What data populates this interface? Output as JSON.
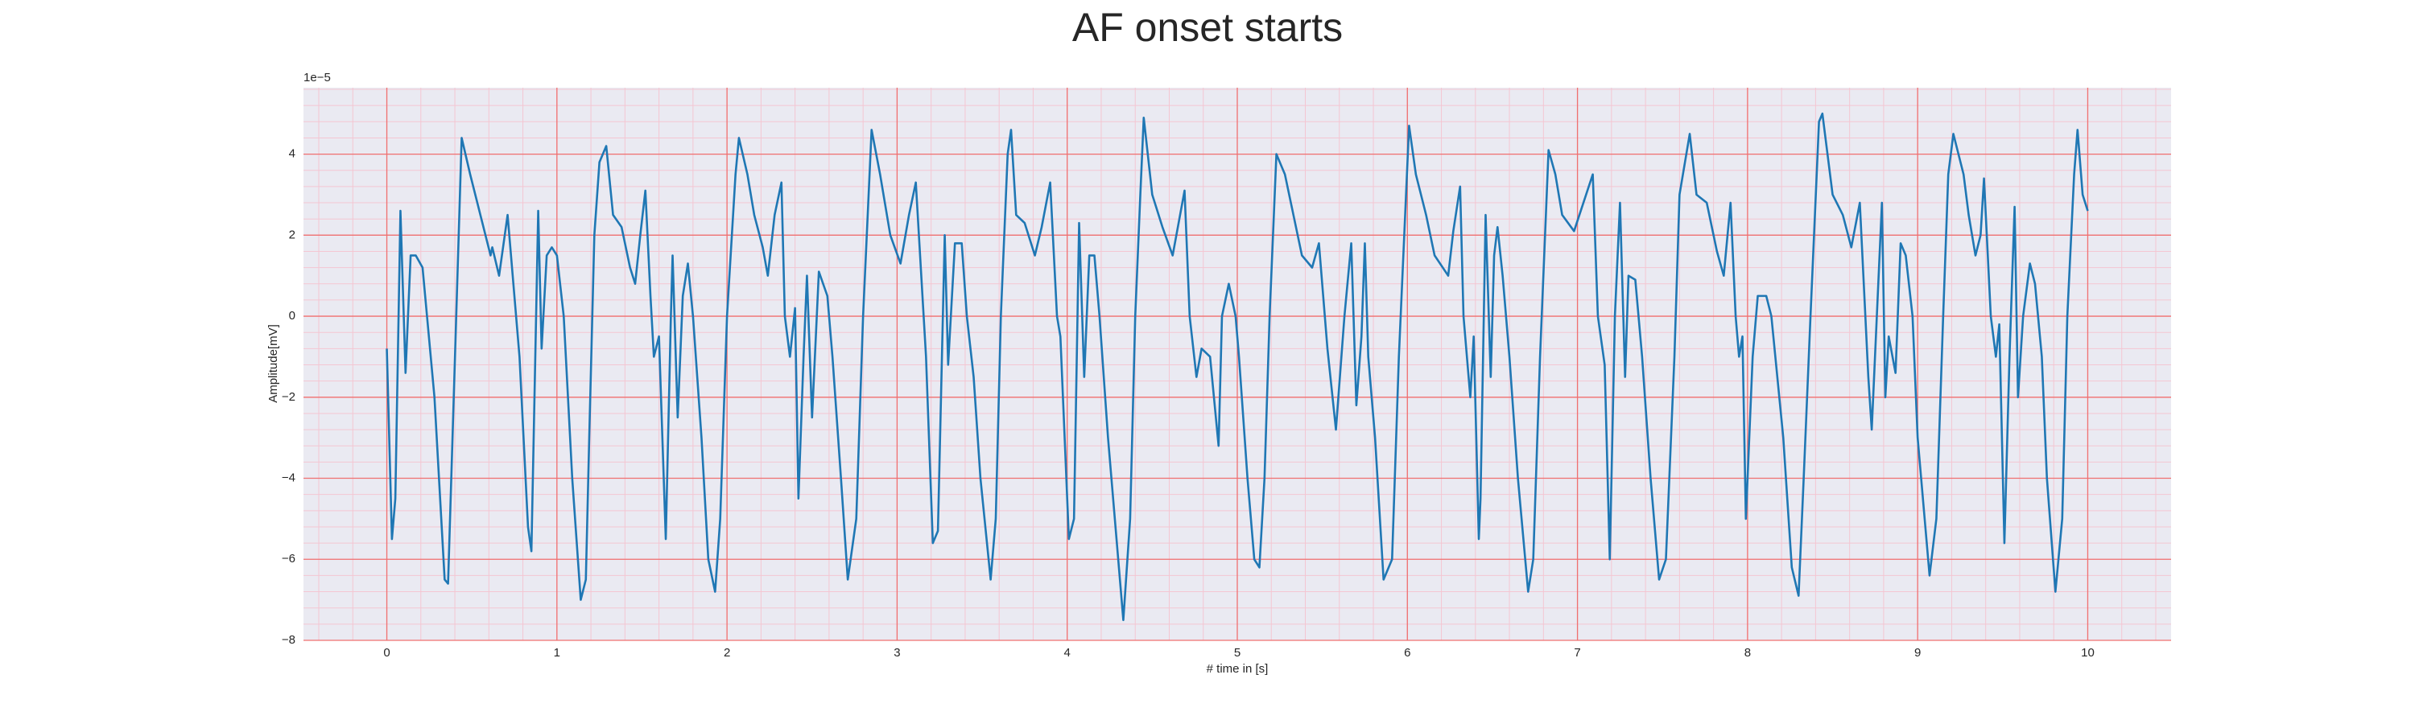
{
  "chart_data": {
    "type": "line",
    "title": "AF onset starts",
    "x_label": "# time in [s]",
    "y_label": "Amplitude[mV]",
    "y_offset_label": "1e−5",
    "color": "#1f77b4",
    "grid": true,
    "minor_grid": true,
    "xlim": [
      -0.49,
      10.49
    ],
    "ylim": [
      -8,
      5.64
    ],
    "xticks": [
      0,
      1,
      2,
      3,
      4,
      5,
      6,
      7,
      8,
      9,
      10
    ],
    "yticks": [
      {
        "value": -8,
        "label": "−8"
      },
      {
        "value": -6,
        "label": "−6"
      },
      {
        "value": -4,
        "label": "−4"
      },
      {
        "value": -2,
        "label": "−2"
      },
      0,
      2,
      4
    ],
    "x": [
      0.0,
      0.03,
      0.05,
      0.08,
      0.11,
      0.14,
      0.17,
      0.21,
      0.28,
      0.34,
      0.36,
      0.44,
      0.49,
      0.55,
      0.61,
      0.62,
      0.66,
      0.71,
      0.78,
      0.83,
      0.85,
      0.89,
      0.91,
      0.94,
      0.97,
      1.0,
      1.04,
      1.09,
      1.14,
      1.17,
      1.19,
      1.22,
      1.25,
      1.29,
      1.33,
      1.38,
      1.43,
      1.46,
      1.49,
      1.52,
      1.55,
      1.57,
      1.6,
      1.64,
      1.67,
      1.68,
      1.71,
      1.74,
      1.77,
      1.8,
      1.85,
      1.89,
      1.93,
      1.96,
      2.0,
      2.05,
      2.07,
      2.12,
      2.16,
      2.21,
      2.24,
      2.28,
      2.32,
      2.34,
      2.37,
      2.4,
      2.42,
      2.45,
      2.47,
      2.5,
      2.54,
      2.59,
      2.62,
      2.67,
      2.71,
      2.76,
      2.8,
      2.85,
      2.9,
      2.96,
      3.02,
      3.07,
      3.11,
      3.17,
      3.21,
      3.24,
      3.28,
      3.3,
      3.34,
      3.38,
      3.41,
      3.45,
      3.49,
      3.55,
      3.58,
      3.61,
      3.65,
      3.67,
      3.7,
      3.75,
      3.81,
      3.85,
      3.9,
      3.94,
      3.96,
      4.01,
      4.04,
      4.07,
      4.1,
      4.13,
      4.16,
      4.19,
      4.24,
      4.3,
      4.33,
      4.37,
      4.4,
      4.43,
      4.45,
      4.5,
      4.56,
      4.62,
      4.69,
      4.72,
      4.76,
      4.79,
      4.84,
      4.89,
      4.91,
      4.95,
      4.99,
      5.01,
      5.06,
      5.1,
      5.13,
      5.16,
      5.19,
      5.23,
      5.28,
      5.33,
      5.38,
      5.44,
      5.48,
      5.53,
      5.58,
      5.63,
      5.67,
      5.7,
      5.73,
      5.75,
      5.77,
      5.81,
      5.86,
      5.91,
      5.95,
      6.01,
      6.05,
      6.11,
      6.16,
      6.24,
      6.27,
      6.31,
      6.33,
      6.37,
      6.39,
      6.42,
      6.43,
      6.46,
      6.49,
      6.51,
      6.53,
      6.56,
      6.6,
      6.65,
      6.71,
      6.74,
      6.78,
      6.83,
      6.87,
      6.91,
      6.98,
      7.09,
      7.12,
      7.16,
      7.19,
      7.22,
      7.25,
      7.28,
      7.3,
      7.34,
      7.38,
      7.43,
      7.48,
      7.52,
      7.57,
      7.6,
      7.66,
      7.7,
      7.76,
      7.82,
      7.86,
      7.9,
      7.93,
      7.95,
      7.97,
      7.99,
      8.03,
      8.06,
      8.11,
      8.14,
      8.21,
      8.26,
      8.3,
      8.33,
      8.37,
      8.42,
      8.44,
      8.5,
      8.56,
      8.61,
      8.66,
      8.71,
      8.73,
      8.76,
      8.79,
      8.81,
      8.83,
      8.87,
      8.9,
      8.93,
      8.97,
      9.0,
      9.07,
      9.11,
      9.15,
      9.18,
      9.21,
      9.27,
      9.3,
      9.34,
      9.37,
      9.39,
      9.43,
      9.46,
      9.48,
      9.51,
      9.54,
      9.57,
      9.59,
      9.62,
      9.66,
      9.69,
      9.73,
      9.76,
      9.81,
      9.85,
      9.88,
      9.92,
      9.94,
      9.97,
      10.0
    ],
    "values": [
      -0.8,
      -5.5,
      -4.5,
      2.6,
      -1.4,
      1.5,
      1.5,
      1.2,
      -2,
      -6.5,
      -6.6,
      4.4,
      3.5,
      2.5,
      1.5,
      1.7,
      1.0,
      2.5,
      -1,
      -5.2,
      -5.8,
      2.6,
      -0.8,
      1.5,
      1.7,
      1.5,
      0,
      -4,
      -7,
      -6.5,
      -3,
      2,
      3.8,
      4.2,
      2.5,
      2.2,
      1.2,
      0.8,
      2,
      3.1,
      0.5,
      -1,
      -0.5,
      -5.5,
      0,
      1.5,
      -2.5,
      0.5,
      1.3,
      0,
      -3,
      -6,
      -6.8,
      -5,
      0,
      3.5,
      4.4,
      3.5,
      2.5,
      1.7,
      1.0,
      2.5,
      3.3,
      0,
      -1,
      0.2,
      -4.5,
      -1,
      1,
      -2.5,
      1.1,
      0.5,
      -1,
      -4,
      -6.5,
      -5,
      0,
      4.6,
      3.5,
      2,
      1.3,
      2.5,
      3.3,
      -1,
      -5.6,
      -5.3,
      2,
      -1.2,
      1.8,
      1.8,
      0,
      -1.5,
      -4,
      -6.5,
      -5,
      0,
      4,
      4.6,
      2.5,
      2.3,
      1.5,
      2.2,
      3.3,
      0,
      -0.5,
      -5.5,
      -5,
      2.3,
      -1.5,
      1.5,
      1.5,
      0,
      -3,
      -6,
      -7.5,
      -5,
      0,
      3,
      4.9,
      3,
      2.2,
      1.5,
      3.1,
      0,
      -1.5,
      -0.8,
      -1,
      -3.2,
      0,
      0.8,
      0,
      -1,
      -4,
      -6,
      -6.2,
      -4,
      0,
      4,
      3.5,
      2.5,
      1.5,
      1.2,
      1.8,
      -0.8,
      -2.8,
      0,
      1.8,
      -2.2,
      -0.5,
      1.8,
      -1,
      -3,
      -6.5,
      -6,
      -1,
      4.7,
      3.5,
      2.5,
      1.5,
      1.0,
      2.1,
      3.2,
      0,
      -2,
      -0.5,
      -5.5,
      -4.5,
      2.5,
      -1.5,
      1.5,
      2.2,
      1,
      -1,
      -4,
      -6.8,
      -6,
      -1,
      4.1,
      3.5,
      2.5,
      2.1,
      3.5,
      0,
      -1.2,
      -6,
      0,
      2.8,
      -1.5,
      1.0,
      0.9,
      -1,
      -4,
      -6.5,
      -6,
      -1,
      3,
      4.5,
      3,
      2.8,
      1.6,
      1.0,
      2.8,
      0,
      -1,
      -0.5,
      -5,
      -1,
      0.5,
      0.5,
      0,
      -3,
      -6.2,
      -6.9,
      -4,
      0,
      4.8,
      5.0,
      3,
      2.5,
      1.7,
      2.8,
      -1.5,
      -2.8,
      0,
      2.8,
      -2,
      -0.5,
      -1.4,
      1.8,
      1.5,
      0,
      -3,
      -6.4,
      -5,
      0,
      3.5,
      4.5,
      3.5,
      2.5,
      1.5,
      2,
      3.4,
      0,
      -1,
      -0.2,
      -5.6,
      -1,
      2.7,
      -2,
      0,
      1.3,
      0.8,
      -1,
      -4,
      -6.8,
      -5,
      0,
      3.5,
      4.6,
      3,
      2.6
    ]
  }
}
